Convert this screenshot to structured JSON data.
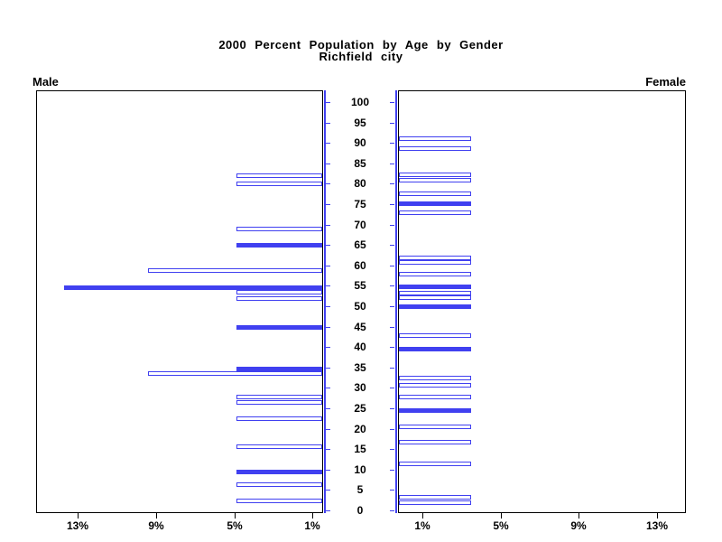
{
  "title": {
    "line1": "2000 Percent Population by Age by Gender",
    "line2": "Richfield city"
  },
  "panels": {
    "male": {
      "label": "Male"
    },
    "female": {
      "label": "Female"
    }
  },
  "colors": {
    "bar_blue": "#4040F0",
    "frame": "#000000",
    "text": "#000000",
    "background": "#FFFFFF"
  },
  "chart_data": {
    "type": "bar",
    "subtype": "population-pyramid",
    "title": "2000 Percent Population by Age by Gender",
    "subtitle": "Richfield city",
    "grid": false,
    "age_axis": {
      "min": 0,
      "max": 100,
      "step": 5,
      "labels": [
        "0",
        "5",
        "10",
        "15",
        "20",
        "25",
        "30",
        "35",
        "40",
        "45",
        "50",
        "55",
        "60",
        "65",
        "70",
        "75",
        "80",
        "85",
        "90",
        "95",
        "100"
      ]
    },
    "pct_axis": {
      "male_tick_labels": [
        "13%",
        "9%",
        "5%",
        "1%"
      ],
      "female_tick_labels": [
        "1%",
        "5%",
        "9%",
        "13%"
      ],
      "ticks": [
        1,
        5,
        9,
        13
      ]
    },
    "series": [
      {
        "name": "Male",
        "side": "left",
        "bars": [
          {
            "age": 81.9,
            "value": 4.9,
            "filled": false
          },
          {
            "age": 80.0,
            "value": 4.9,
            "filled": false
          },
          {
            "age": 68.9,
            "value": 4.9,
            "filled": false
          },
          {
            "age": 65.0,
            "value": 4.9,
            "filled": true
          },
          {
            "age": 58.8,
            "value": 9.4,
            "filled": false
          },
          {
            "age": 54.6,
            "value": 13.7,
            "filled": true
          },
          {
            "age": 53.4,
            "value": 4.9,
            "filled": false
          },
          {
            "age": 51.9,
            "value": 4.9,
            "filled": false
          },
          {
            "age": 44.9,
            "value": 4.9,
            "filled": true
          },
          {
            "age": 34.7,
            "value": 4.9,
            "filled": true
          },
          {
            "age": 33.5,
            "value": 9.4,
            "filled": false
          },
          {
            "age": 27.7,
            "value": 4.9,
            "filled": false
          },
          {
            "age": 26.4,
            "value": 4.9,
            "filled": false
          },
          {
            "age": 22.5,
            "value": 4.9,
            "filled": false
          },
          {
            "age": 15.6,
            "value": 4.9,
            "filled": false
          },
          {
            "age": 9.4,
            "value": 4.9,
            "filled": true
          },
          {
            "age": 6.3,
            "value": 4.9,
            "filled": false
          },
          {
            "age": 2.4,
            "value": 4.9,
            "filled": false
          }
        ]
      },
      {
        "name": "Female",
        "side": "right",
        "bars": [
          {
            "age": 91.1,
            "value": 3.5,
            "filled": false
          },
          {
            "age": 88.6,
            "value": 3.5,
            "filled": false
          },
          {
            "age": 82.2,
            "value": 3.5,
            "filled": false
          },
          {
            "age": 80.9,
            "value": 3.5,
            "filled": false
          },
          {
            "age": 77.6,
            "value": 3.5,
            "filled": false
          },
          {
            "age": 75.2,
            "value": 3.5,
            "filled": true
          },
          {
            "age": 72.9,
            "value": 3.5,
            "filled": false
          },
          {
            "age": 61.9,
            "value": 3.5,
            "filled": false
          },
          {
            "age": 60.7,
            "value": 3.5,
            "filled": false
          },
          {
            "age": 57.9,
            "value": 3.5,
            "filled": false
          },
          {
            "age": 54.7,
            "value": 3.5,
            "filled": true
          },
          {
            "age": 53.3,
            "value": 3.5,
            "filled": false
          },
          {
            "age": 52.1,
            "value": 3.5,
            "filled": false
          },
          {
            "age": 50.0,
            "value": 3.5,
            "filled": true
          },
          {
            "age": 42.8,
            "value": 3.5,
            "filled": false
          },
          {
            "age": 39.6,
            "value": 3.5,
            "filled": true
          },
          {
            "age": 32.5,
            "value": 3.5,
            "filled": false
          },
          {
            "age": 30.7,
            "value": 3.5,
            "filled": false
          },
          {
            "age": 27.7,
            "value": 3.5,
            "filled": false
          },
          {
            "age": 24.4,
            "value": 3.5,
            "filled": true
          },
          {
            "age": 20.5,
            "value": 3.5,
            "filled": false
          },
          {
            "age": 16.6,
            "value": 3.5,
            "filled": false
          },
          {
            "age": 11.4,
            "value": 3.5,
            "filled": false
          },
          {
            "age": 3.1,
            "value": 3.5,
            "filled": false
          },
          {
            "age": 1.8,
            "value": 3.5,
            "filled": false
          }
        ]
      }
    ]
  }
}
